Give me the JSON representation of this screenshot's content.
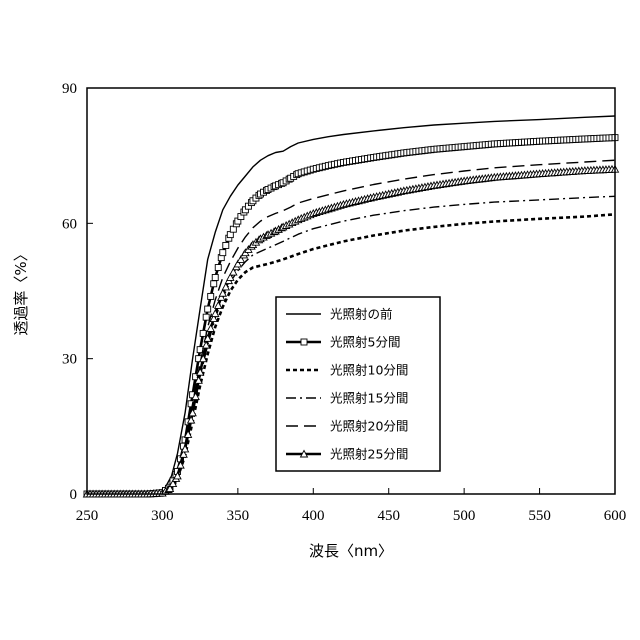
{
  "chart_data": {
    "type": "line",
    "xlabel": "波長〈nm〉",
    "ylabel": "透過率〈%〉",
    "xlim": [
      250,
      600
    ],
    "ylim": [
      0,
      90
    ],
    "xticks": [
      250,
      300,
      350,
      400,
      450,
      500,
      550,
      600
    ],
    "yticks": [
      0,
      30,
      60,
      90
    ],
    "grid": false,
    "legend_position": "center",
    "series": [
      {
        "name": "光照射の前",
        "style": "solid",
        "line_width": "thin",
        "marker": "none",
        "points": [
          [
            250,
            0
          ],
          [
            290,
            0
          ],
          [
            298,
            0.3
          ],
          [
            302,
            1.5
          ],
          [
            306,
            4
          ],
          [
            310,
            9
          ],
          [
            315,
            18
          ],
          [
            320,
            30
          ],
          [
            325,
            41
          ],
          [
            330,
            52
          ],
          [
            335,
            58
          ],
          [
            340,
            63
          ],
          [
            345,
            66
          ],
          [
            350,
            68.5
          ],
          [
            355,
            70.5
          ],
          [
            360,
            72.5
          ],
          [
            365,
            74
          ],
          [
            370,
            75
          ],
          [
            375,
            75.7
          ],
          [
            380,
            76
          ],
          [
            385,
            77
          ],
          [
            390,
            77.8
          ],
          [
            400,
            78.6
          ],
          [
            410,
            79.2
          ],
          [
            420,
            79.7
          ],
          [
            440,
            80.5
          ],
          [
            460,
            81.2
          ],
          [
            480,
            81.8
          ],
          [
            500,
            82.2
          ],
          [
            520,
            82.6
          ],
          [
            550,
            83
          ],
          [
            580,
            83.5
          ],
          [
            600,
            83.8
          ]
        ]
      },
      {
        "name": "光照射5分間",
        "style": "solid",
        "line_width": "bold",
        "marker": "square",
        "points": [
          [
            250,
            0
          ],
          [
            290,
            0
          ],
          [
            300,
            0.3
          ],
          [
            305,
            1.5
          ],
          [
            310,
            5
          ],
          [
            315,
            12
          ],
          [
            320,
            22
          ],
          [
            325,
            32
          ],
          [
            330,
            41
          ],
          [
            335,
            48
          ],
          [
            340,
            53.5
          ],
          [
            345,
            57.5
          ],
          [
            350,
            60.5
          ],
          [
            355,
            63
          ],
          [
            360,
            65
          ],
          [
            365,
            66.5
          ],
          [
            370,
            67.5
          ],
          [
            375,
            68.3
          ],
          [
            380,
            69
          ],
          [
            385,
            70
          ],
          [
            390,
            71
          ],
          [
            400,
            72
          ],
          [
            410,
            72.8
          ],
          [
            420,
            73.5
          ],
          [
            440,
            74.6
          ],
          [
            460,
            75.6
          ],
          [
            480,
            76.4
          ],
          [
            500,
            77
          ],
          [
            520,
            77.6
          ],
          [
            550,
            78.2
          ],
          [
            580,
            78.7
          ],
          [
            600,
            79
          ]
        ]
      },
      {
        "name": "光照射10分間",
        "style": "short-dash",
        "line_width": "bold",
        "marker": "none",
        "points": [
          [
            250,
            0
          ],
          [
            290,
            0
          ],
          [
            300,
            0.2
          ],
          [
            305,
            1
          ],
          [
            310,
            3.5
          ],
          [
            315,
            8.5
          ],
          [
            320,
            16
          ],
          [
            325,
            24
          ],
          [
            330,
            31
          ],
          [
            335,
            37
          ],
          [
            340,
            41.5
          ],
          [
            345,
            45
          ],
          [
            350,
            47.5
          ],
          [
            355,
            49.2
          ],
          [
            360,
            50.2
          ],
          [
            370,
            51
          ],
          [
            380,
            52
          ],
          [
            390,
            53.2
          ],
          [
            400,
            54.3
          ],
          [
            420,
            56
          ],
          [
            440,
            57.3
          ],
          [
            460,
            58.4
          ],
          [
            480,
            59.2
          ],
          [
            500,
            59.9
          ],
          [
            520,
            60.4
          ],
          [
            550,
            61
          ],
          [
            580,
            61.5
          ],
          [
            600,
            62
          ]
        ]
      },
      {
        "name": "光照射15分間",
        "style": "dash-dot",
        "line_width": "thin",
        "marker": "none",
        "points": [
          [
            250,
            0
          ],
          [
            290,
            0
          ],
          [
            300,
            0.2
          ],
          [
            305,
            1.2
          ],
          [
            310,
            4
          ],
          [
            315,
            9.5
          ],
          [
            320,
            17.5
          ],
          [
            325,
            26
          ],
          [
            330,
            33
          ],
          [
            335,
            39
          ],
          [
            340,
            43.5
          ],
          [
            345,
            47
          ],
          [
            350,
            49.5
          ],
          [
            355,
            51.5
          ],
          [
            360,
            53
          ],
          [
            370,
            54.5
          ],
          [
            380,
            56
          ],
          [
            390,
            57.6
          ],
          [
            400,
            58.8
          ],
          [
            420,
            60.5
          ],
          [
            440,
            61.8
          ],
          [
            460,
            62.8
          ],
          [
            480,
            63.6
          ],
          [
            500,
            64.2
          ],
          [
            520,
            64.7
          ],
          [
            550,
            65.2
          ],
          [
            580,
            65.7
          ],
          [
            600,
            66
          ]
        ]
      },
      {
        "name": "光照射20分間",
        "style": "long-dash",
        "line_width": "thin",
        "marker": "none",
        "points": [
          [
            250,
            0
          ],
          [
            290,
            0
          ],
          [
            300,
            0.3
          ],
          [
            305,
            1.5
          ],
          [
            310,
            4.5
          ],
          [
            315,
            11
          ],
          [
            320,
            20
          ],
          [
            325,
            29
          ],
          [
            330,
            37
          ],
          [
            335,
            43
          ],
          [
            340,
            48
          ],
          [
            345,
            51.5
          ],
          [
            350,
            54.5
          ],
          [
            355,
            57
          ],
          [
            360,
            59
          ],
          [
            365,
            60.5
          ],
          [
            370,
            61.5
          ],
          [
            375,
            62.2
          ],
          [
            380,
            62.8
          ],
          [
            385,
            63.6
          ],
          [
            390,
            64.5
          ],
          [
            400,
            65.5
          ],
          [
            420,
            67.2
          ],
          [
            440,
            68.6
          ],
          [
            460,
            69.8
          ],
          [
            480,
            70.8
          ],
          [
            500,
            71.6
          ],
          [
            520,
            72.3
          ],
          [
            550,
            73
          ],
          [
            580,
            73.6
          ],
          [
            600,
            74
          ]
        ]
      },
      {
        "name": "光照射25分間",
        "style": "solid",
        "line_width": "bold",
        "marker": "triangle",
        "points": [
          [
            250,
            0
          ],
          [
            290,
            0
          ],
          [
            300,
            0.2
          ],
          [
            305,
            1.2
          ],
          [
            310,
            4
          ],
          [
            315,
            10
          ],
          [
            320,
            18
          ],
          [
            325,
            27
          ],
          [
            330,
            34.5
          ],
          [
            335,
            40
          ],
          [
            340,
            44.5
          ],
          [
            345,
            48
          ],
          [
            350,
            51
          ],
          [
            355,
            53.5
          ],
          [
            360,
            55.3
          ],
          [
            365,
            56.6
          ],
          [
            370,
            57.5
          ],
          [
            375,
            58.3
          ],
          [
            380,
            59.2
          ],
          [
            390,
            60.8
          ],
          [
            400,
            62.2
          ],
          [
            420,
            64.2
          ],
          [
            440,
            65.8
          ],
          [
            460,
            67.2
          ],
          [
            480,
            68.4
          ],
          [
            500,
            69.4
          ],
          [
            520,
            70.2
          ],
          [
            550,
            71
          ],
          [
            580,
            71.7
          ],
          [
            600,
            72
          ]
        ]
      }
    ]
  }
}
